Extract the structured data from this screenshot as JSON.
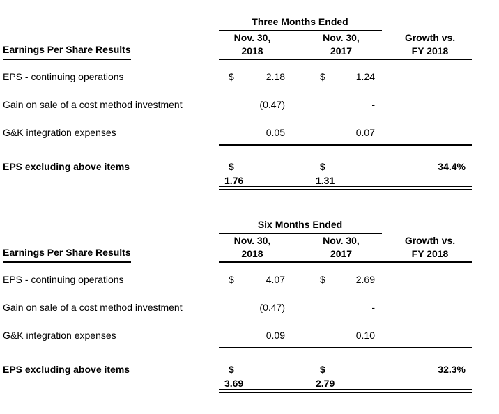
{
  "document": {
    "background": "#ffffff",
    "text_color": "#000000",
    "rule_color": "#000000"
  },
  "tables": [
    {
      "period": "Three Months Ended",
      "row_header": "Earnings Per Share Results",
      "columns": [
        {
          "line1": "Nov. 30,",
          "line2": "2018"
        },
        {
          "line1": "Nov. 30,",
          "line2": "2017"
        },
        {
          "line1": "Growth vs.",
          "line2": "FY 2018"
        }
      ],
      "rows": [
        {
          "label": "EPS - continuing operations",
          "c1_dollar": "$",
          "c1_value": "2.18",
          "c2_dollar": "$",
          "c2_value": "1.24",
          "growth": ""
        },
        {
          "label": "Gain on sale of a cost method investment",
          "c1_dollar": "",
          "c1_value": "(0.47)",
          "c2_dollar": "",
          "c2_value": "-",
          "growth": ""
        },
        {
          "label": "G&K integration expenses",
          "c1_dollar": "",
          "c1_value": "0.05",
          "c2_dollar": "",
          "c2_value": "0.07",
          "growth": ""
        }
      ],
      "total": {
        "label": "EPS excluding above items",
        "c1_dollar": "$",
        "c1_value": "1.76",
        "c2_dollar": "$",
        "c2_value": "1.31",
        "growth": "34.4%"
      }
    },
    {
      "period": "Six Months Ended",
      "row_header": "Earnings Per Share Results",
      "columns": [
        {
          "line1": "Nov. 30,",
          "line2": "2018"
        },
        {
          "line1": "Nov. 30,",
          "line2": "2017"
        },
        {
          "line1": "Growth vs.",
          "line2": "FY 2018"
        }
      ],
      "rows": [
        {
          "label": "EPS - continuing operations",
          "c1_dollar": "$",
          "c1_value": "4.07",
          "c2_dollar": "$",
          "c2_value": "2.69",
          "growth": ""
        },
        {
          "label": "Gain on sale of a cost method investment",
          "c1_dollar": "",
          "c1_value": "(0.47)",
          "c2_dollar": "",
          "c2_value": "-",
          "growth": ""
        },
        {
          "label": "G&K integration expenses",
          "c1_dollar": "",
          "c1_value": "0.09",
          "c2_dollar": "",
          "c2_value": "0.10",
          "growth": ""
        }
      ],
      "total": {
        "label": "EPS excluding above items",
        "c1_dollar": "$",
        "c1_value": "3.69",
        "c2_dollar": "$",
        "c2_value": "2.79",
        "growth": "32.3%"
      }
    }
  ]
}
